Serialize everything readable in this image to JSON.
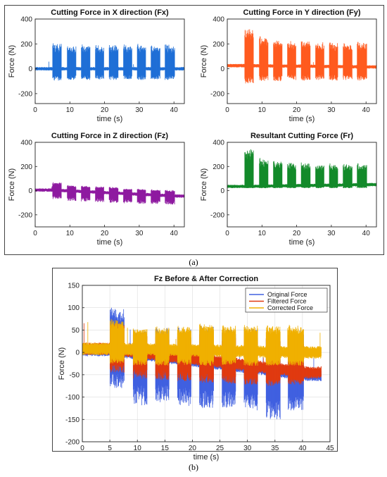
{
  "captions": {
    "a": "(a)",
    "b": "(b)"
  },
  "colors": {
    "fx": "#1f6fd6",
    "fy": "#ff5a1f",
    "fz": "#8e1aa0",
    "fr": "#138a2a",
    "original": "#4060e0",
    "filtered": "#e03a10",
    "corrected": "#f0b000"
  },
  "chart_data": [
    {
      "id": "fx",
      "type": "line",
      "title": "Cutting Force in X direction (Fx)",
      "xlabel": "time (s)",
      "ylabel": "Force (N)",
      "xlim": [
        0,
        43
      ],
      "ylim": [
        -280,
        400
      ],
      "xticks": [
        0,
        10,
        20,
        30,
        40
      ],
      "yticks": [
        -200,
        0,
        200,
        400
      ],
      "grid": false,
      "baseline": 0,
      "baseline_end": 0,
      "cuts": [
        {
          "start": 5.0,
          "end": 7.6,
          "max": 205,
          "min": -95
        },
        {
          "start": 9.2,
          "end": 11.8,
          "max": 190,
          "min": -90
        },
        {
          "start": 13.3,
          "end": 15.8,
          "max": 195,
          "min": -90
        },
        {
          "start": 17.3,
          "end": 19.8,
          "max": 190,
          "min": -85
        },
        {
          "start": 21.3,
          "end": 23.9,
          "max": 200,
          "min": -90
        },
        {
          "start": 25.4,
          "end": 27.9,
          "max": 195,
          "min": -85
        },
        {
          "start": 29.4,
          "end": 31.9,
          "max": 200,
          "min": -90
        },
        {
          "start": 33.4,
          "end": 36.0,
          "max": 195,
          "min": -85
        },
        {
          "start": 37.4,
          "end": 40.2,
          "max": 195,
          "min": -90
        }
      ]
    },
    {
      "id": "fy",
      "type": "line",
      "title": "Cutting Force in Y direction (Fy)",
      "xlabel": "time (s)",
      "ylabel": "Force (N)",
      "xlim": [
        0,
        43
      ],
      "ylim": [
        -280,
        400
      ],
      "xticks": [
        0,
        10,
        20,
        30,
        40
      ],
      "yticks": [
        -200,
        0,
        200,
        400
      ],
      "grid": false,
      "baseline": 25,
      "baseline_end": 15,
      "cuts": [
        {
          "start": 5.0,
          "end": 7.6,
          "max": 340,
          "min": -120
        },
        {
          "start": 9.2,
          "end": 11.8,
          "max": 260,
          "min": -100
        },
        {
          "start": 13.3,
          "end": 15.8,
          "max": 235,
          "min": -100
        },
        {
          "start": 17.3,
          "end": 19.8,
          "max": 225,
          "min": -90
        },
        {
          "start": 21.3,
          "end": 23.9,
          "max": 225,
          "min": -95
        },
        {
          "start": 25.4,
          "end": 27.9,
          "max": 215,
          "min": -90
        },
        {
          "start": 29.4,
          "end": 31.9,
          "max": 210,
          "min": -95
        },
        {
          "start": 33.4,
          "end": 36.0,
          "max": 205,
          "min": -90
        },
        {
          "start": 37.4,
          "end": 40.2,
          "max": 215,
          "min": -95
        }
      ]
    },
    {
      "id": "fz",
      "type": "line",
      "title": "Cutting Force in Z direction (Fz)",
      "xlabel": "time (s)",
      "ylabel": "Force (N)",
      "xlim": [
        0,
        43
      ],
      "ylim": [
        -300,
        400
      ],
      "xticks": [
        0,
        10,
        20,
        30,
        40
      ],
      "yticks": [
        -200,
        0,
        200,
        400
      ],
      "grid": false,
      "baseline": 5,
      "baseline_end": -45,
      "cuts": [
        {
          "start": 5.0,
          "end": 7.6,
          "max": 70,
          "min": -70
        },
        {
          "start": 9.2,
          "end": 11.8,
          "max": 45,
          "min": -85
        },
        {
          "start": 13.3,
          "end": 15.8,
          "max": 40,
          "min": -90
        },
        {
          "start": 17.3,
          "end": 19.8,
          "max": 35,
          "min": -95
        },
        {
          "start": 21.3,
          "end": 23.9,
          "max": 30,
          "min": -100
        },
        {
          "start": 25.4,
          "end": 27.9,
          "max": 20,
          "min": -105
        },
        {
          "start": 29.4,
          "end": 31.9,
          "max": 15,
          "min": -110
        },
        {
          "start": 33.4,
          "end": 36.0,
          "max": 10,
          "min": -110
        },
        {
          "start": 37.4,
          "end": 40.2,
          "max": 5,
          "min": -115
        }
      ]
    },
    {
      "id": "fr",
      "type": "line",
      "title": "Resultant Cutting Force (Fr)",
      "xlabel": "time (s)",
      "ylabel": "Force (N)",
      "xlim": [
        0,
        43
      ],
      "ylim": [
        -300,
        400
      ],
      "xticks": [
        0,
        10,
        20,
        30,
        40
      ],
      "yticks": [
        -200,
        0,
        200,
        400
      ],
      "grid": false,
      "baseline": 35,
      "baseline_end": 50,
      "cuts": [
        {
          "start": 5.0,
          "end": 7.6,
          "max": 355,
          "min": 20
        },
        {
          "start": 9.2,
          "end": 11.8,
          "max": 270,
          "min": 20
        },
        {
          "start": 13.3,
          "end": 15.8,
          "max": 245,
          "min": 20
        },
        {
          "start": 17.3,
          "end": 19.8,
          "max": 235,
          "min": 20
        },
        {
          "start": 21.3,
          "end": 23.9,
          "max": 235,
          "min": 20
        },
        {
          "start": 25.4,
          "end": 27.9,
          "max": 225,
          "min": 20
        },
        {
          "start": 29.4,
          "end": 31.9,
          "max": 225,
          "min": 20
        },
        {
          "start": 33.4,
          "end": 36.0,
          "max": 220,
          "min": 20
        },
        {
          "start": 37.4,
          "end": 40.2,
          "max": 225,
          "min": 20
        }
      ]
    },
    {
      "id": "fzc",
      "type": "line",
      "title": "Fz Before & After Correction",
      "xlabel": "time (s)",
      "ylabel": "Force (N)",
      "xlim": [
        0,
        45
      ],
      "ylim": [
        -200,
        150
      ],
      "xticks": [
        0,
        5,
        10,
        15,
        20,
        25,
        30,
        35,
        40,
        45
      ],
      "yticks": [
        -200,
        -150,
        -100,
        -50,
        0,
        50,
        100,
        150
      ],
      "grid": true,
      "legend": "top-right",
      "series": [
        {
          "name": "Original Force",
          "baseline": 5,
          "baseline_end": -50,
          "cuts": [
            {
              "start": 5.0,
              "end": 7.6,
              "max": 100,
              "min": -80
            },
            {
              "start": 9.2,
              "end": 11.8,
              "max": 50,
              "min": -120
            },
            {
              "start": 13.3,
              "end": 15.8,
              "max": 55,
              "min": -115
            },
            {
              "start": 17.3,
              "end": 19.8,
              "max": 55,
              "min": -120
            },
            {
              "start": 21.3,
              "end": 23.9,
              "max": 60,
              "min": -125
            },
            {
              "start": 25.4,
              "end": 27.9,
              "max": 55,
              "min": -125
            },
            {
              "start": 29.4,
              "end": 31.9,
              "max": 55,
              "min": -130
            },
            {
              "start": 33.4,
              "end": 36.0,
              "max": 50,
              "min": -150
            },
            {
              "start": 37.4,
              "end": 40.2,
              "max": 55,
              "min": -130
            }
          ]
        },
        {
          "name": "Filtered Force",
          "baseline": 8,
          "baseline_end": -45,
          "cuts": [
            {
              "start": 5.0,
              "end": 7.6,
              "max": 70,
              "min": -45
            },
            {
              "start": 9.2,
              "end": 11.8,
              "max": 40,
              "min": -60
            },
            {
              "start": 13.3,
              "end": 15.8,
              "max": 40,
              "min": -62
            },
            {
              "start": 17.3,
              "end": 19.8,
              "max": 40,
              "min": -65
            },
            {
              "start": 21.3,
              "end": 23.9,
              "max": 45,
              "min": -68
            },
            {
              "start": 25.4,
              "end": 27.9,
              "max": 40,
              "min": -70
            },
            {
              "start": 29.4,
              "end": 31.9,
              "max": 40,
              "min": -72
            },
            {
              "start": 33.4,
              "end": 36.0,
              "max": 40,
              "min": -75
            },
            {
              "start": 37.4,
              "end": 40.2,
              "max": 40,
              "min": -72
            }
          ]
        },
        {
          "name": "Corrected Force",
          "baseline": 8,
          "baseline_end": 0,
          "cuts": [
            {
              "start": 5.0,
              "end": 7.6,
              "max": 75,
              "min": -25
            },
            {
              "start": 9.2,
              "end": 11.8,
              "max": 55,
              "min": -30
            },
            {
              "start": 13.3,
              "end": 15.8,
              "max": 58,
              "min": -30
            },
            {
              "start": 17.3,
              "end": 19.8,
              "max": 60,
              "min": -28
            },
            {
              "start": 21.3,
              "end": 23.9,
              "max": 65,
              "min": -30
            },
            {
              "start": 25.4,
              "end": 27.9,
              "max": 60,
              "min": -28
            },
            {
              "start": 29.4,
              "end": 31.9,
              "max": 62,
              "min": -30
            },
            {
              "start": 33.4,
              "end": 36.0,
              "max": 60,
              "min": -30
            },
            {
              "start": 37.4,
              "end": 40.2,
              "max": 62,
              "min": -30
            }
          ]
        }
      ]
    }
  ]
}
